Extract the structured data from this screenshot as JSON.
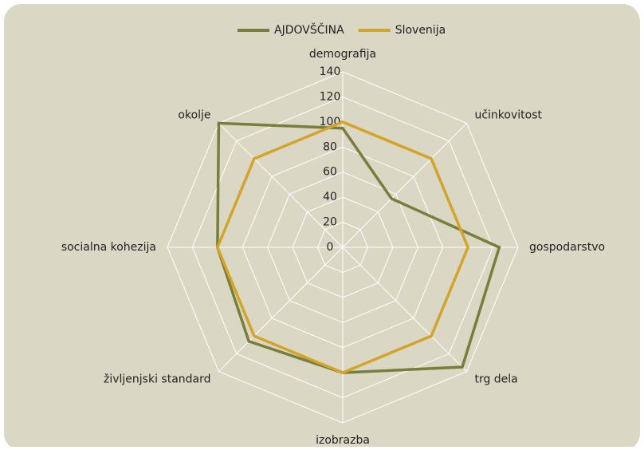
{
  "chart_data": {
    "type": "radar",
    "categories": [
      "demografija",
      "učinkovitost",
      "gospodarstvo",
      "trg dela",
      "izobrazba",
      "življenjski standard",
      "socialna kohezija",
      "okolje"
    ],
    "series": [
      {
        "name": "AJDOVŠČINA",
        "color": "#76803a",
        "values": [
          95,
          55,
          125,
          135,
          100,
          106,
          100,
          140
        ]
      },
      {
        "name": "Slovenija",
        "color": "#d4a42a",
        "values": [
          100,
          100,
          100,
          100,
          100,
          100,
          100,
          100
        ]
      }
    ],
    "ylim": [
      0,
      140
    ],
    "yticks": [
      0,
      20,
      40,
      60,
      80,
      100,
      120,
      140
    ],
    "grid": true,
    "legend": "top"
  }
}
